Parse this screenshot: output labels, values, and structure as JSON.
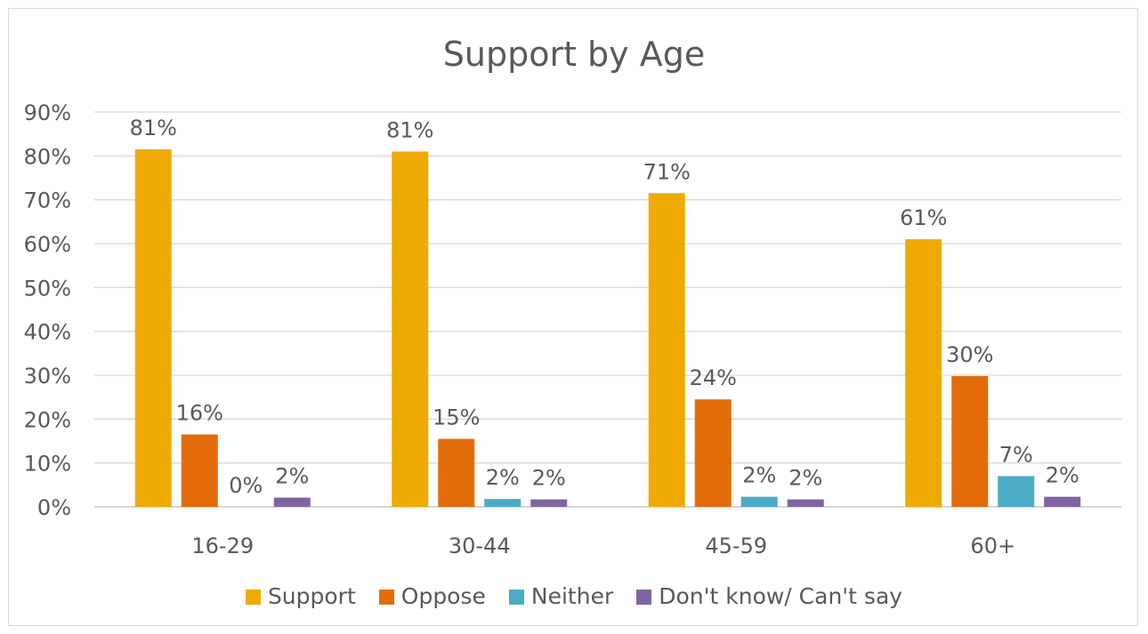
{
  "chart_data": {
    "type": "bar",
    "title": "Support by Age",
    "categories": [
      "16-29",
      "30-44",
      "45-59",
      "60+"
    ],
    "series": [
      {
        "name": "Support",
        "color": "#EEAA00",
        "values": [
          81.5,
          81.0,
          71.5,
          61.0
        ],
        "labels": [
          "81%",
          "81%",
          "71%",
          "61%"
        ]
      },
      {
        "name": "Oppose",
        "color": "#E36C0A",
        "values": [
          16.5,
          15.5,
          24.5,
          29.8
        ],
        "labels": [
          "16%",
          "15%",
          "24%",
          "30%"
        ]
      },
      {
        "name": "Neither",
        "color": "#4BACC6",
        "values": [
          0.0,
          1.8,
          2.3,
          7.0
        ],
        "labels": [
          "0%",
          "2%",
          "2%",
          "7%"
        ]
      },
      {
        "name": "Don't know/ Can't say",
        "color": "#8064A2",
        "values": [
          2.1,
          1.7,
          1.7,
          2.3
        ],
        "labels": [
          "2%",
          "2%",
          "2%",
          "2%"
        ]
      }
    ],
    "ylim": [
      0,
      90
    ],
    "yticks": [
      "0%",
      "10%",
      "20%",
      "30%",
      "40%",
      "50%",
      "60%",
      "70%",
      "80%",
      "90%"
    ],
    "grid": true,
    "legend_position": "bottom",
    "xlabel": "",
    "ylabel": ""
  }
}
